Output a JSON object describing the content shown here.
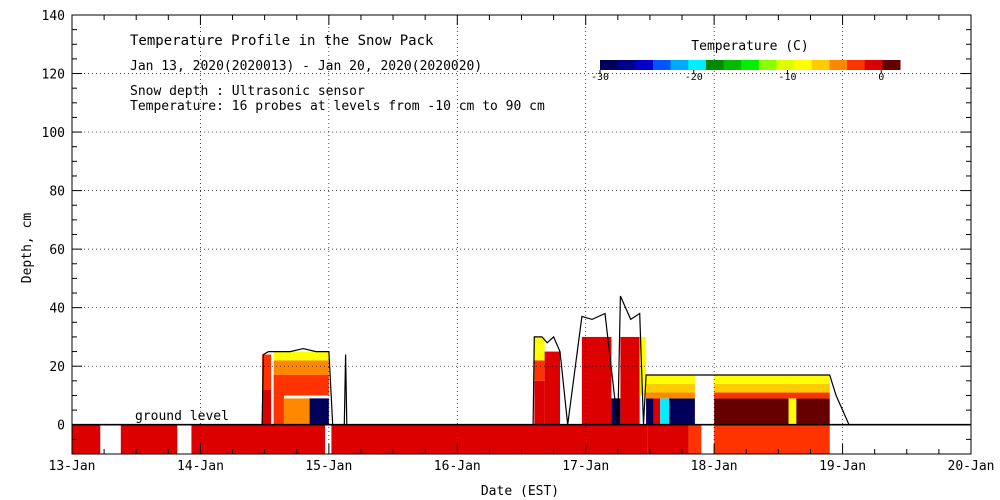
{
  "chart_data": {
    "type": "heatmap",
    "title": "Temperature Profile in the Snow Pack",
    "subtitle": "Jan 13, 2020(2020013) - Jan 20, 2020(2020020)",
    "notes": [
      "Snow depth : Ultrasonic sensor",
      "Temperature: 16 probes at levels from -10 cm to 90 cm"
    ],
    "xlabel": "Date (EST)",
    "ylabel": "Depth, cm",
    "x_ticks": [
      "13-Jan",
      "14-Jan",
      "15-Jan",
      "16-Jan",
      "17-Jan",
      "18-Jan",
      "19-Jan",
      "20-Jan"
    ],
    "xlim_days": [
      13,
      20
    ],
    "ylim": [
      -10,
      140
    ],
    "y_ticks": [
      0,
      20,
      40,
      60,
      80,
      100,
      120,
      140
    ],
    "grid": true,
    "ground_level_label": "ground level",
    "colorbar": {
      "title": "Temperature (C)",
      "ticks": [
        "-30",
        "-20",
        "-10",
        "0"
      ],
      "range": [
        -30,
        2
      ],
      "colors": [
        "#00005a",
        "#000088",
        "#0000cc",
        "#0055ff",
        "#00aaff",
        "#00eeff",
        "#008800",
        "#00bb00",
        "#00ee00",
        "#88ff00",
        "#ddff00",
        "#ffff00",
        "#ffcc00",
        "#ff8800",
        "#ff3300",
        "#dd0000",
        "#660000"
      ]
    },
    "snow_depth_series": [
      {
        "day": 14.48,
        "depth": 0
      },
      {
        "day": 14.49,
        "depth": 24
      },
      {
        "day": 14.53,
        "depth": 25
      },
      {
        "day": 14.6,
        "depth": 25
      },
      {
        "day": 14.7,
        "depth": 25
      },
      {
        "day": 14.8,
        "depth": 26
      },
      {
        "day": 14.9,
        "depth": 25
      },
      {
        "day": 15.0,
        "depth": 25
      },
      {
        "day": 15.03,
        "depth": 0
      },
      {
        "day": 15.12,
        "depth": 0
      },
      {
        "day": 15.13,
        "depth": 24
      },
      {
        "day": 15.14,
        "depth": 0
      },
      {
        "day": 16.59,
        "depth": 0
      },
      {
        "day": 16.6,
        "depth": 30
      },
      {
        "day": 16.66,
        "depth": 30
      },
      {
        "day": 16.7,
        "depth": 28
      },
      {
        "day": 16.75,
        "depth": 30
      },
      {
        "day": 16.8,
        "depth": 25
      },
      {
        "day": 16.86,
        "depth": 0
      },
      {
        "day": 16.97,
        "depth": 37
      },
      {
        "day": 17.05,
        "depth": 36
      },
      {
        "day": 17.15,
        "depth": 38
      },
      {
        "day": 17.25,
        "depth": 0
      },
      {
        "day": 17.27,
        "depth": 44
      },
      {
        "day": 17.35,
        "depth": 36
      },
      {
        "day": 17.42,
        "depth": 38
      },
      {
        "day": 17.45,
        "depth": 0
      },
      {
        "day": 17.47,
        "depth": 17
      },
      {
        "day": 17.6,
        "depth": 17
      },
      {
        "day": 17.8,
        "depth": 17
      },
      {
        "day": 18.0,
        "depth": 17
      },
      {
        "day": 18.2,
        "depth": 17
      },
      {
        "day": 18.5,
        "depth": 17
      },
      {
        "day": 18.75,
        "depth": 17
      },
      {
        "day": 18.9,
        "depth": 17
      },
      {
        "day": 18.95,
        "depth": 10
      },
      {
        "day": 19.0,
        "depth": 5
      },
      {
        "day": 19.05,
        "depth": 0
      },
      {
        "day": 19.2,
        "depth": 0
      }
    ],
    "cells": [
      {
        "d0": 13.0,
        "d1": 13.22,
        "z0": -10,
        "z1": 0,
        "t": 0
      },
      {
        "d0": 13.38,
        "d1": 13.82,
        "z0": -10,
        "z1": 0,
        "t": 0
      },
      {
        "d0": 13.93,
        "d1": 14.97,
        "z0": -10,
        "z1": 0,
        "t": 0
      },
      {
        "d0": 15.02,
        "d1": 17.48,
        "z0": -10,
        "z1": 0,
        "t": 0
      },
      {
        "d0": 17.48,
        "d1": 17.8,
        "z0": -10,
        "z1": 0,
        "t": -1
      },
      {
        "d0": 17.8,
        "d1": 17.9,
        "z0": -10,
        "z1": 0,
        "t": -3
      },
      {
        "d0": 18.0,
        "d1": 18.9,
        "z0": -10,
        "z1": 0,
        "t": -3
      },
      {
        "d0": 14.48,
        "d1": 14.55,
        "z0": 0,
        "z1": 12,
        "t": 0
      },
      {
        "d0": 14.48,
        "d1": 14.55,
        "z0": 12,
        "z1": 24,
        "t": -2
      },
      {
        "d0": 14.57,
        "d1": 14.65,
        "z0": 0,
        "z1": 10,
        "t": -2
      },
      {
        "d0": 14.65,
        "d1": 14.85,
        "z0": 0,
        "z1": 9,
        "t": -5
      },
      {
        "d0": 14.85,
        "d1": 15.0,
        "z0": 0,
        "z1": 9,
        "t": -30
      },
      {
        "d0": 14.57,
        "d1": 15.0,
        "z0": 10,
        "z1": 17,
        "t": -3
      },
      {
        "d0": 14.57,
        "d1": 15.0,
        "z0": 17,
        "z1": 22,
        "t": -5
      },
      {
        "d0": 14.57,
        "d1": 15.0,
        "z0": 22,
        "z1": 25,
        "t": -9
      },
      {
        "d0": 16.6,
        "d1": 16.68,
        "z0": 0,
        "z1": 15,
        "t": 0
      },
      {
        "d0": 16.6,
        "d1": 16.68,
        "z0": 15,
        "z1": 22,
        "t": -2
      },
      {
        "d0": 16.6,
        "d1": 16.68,
        "z0": 22,
        "z1": 30,
        "t": -9
      },
      {
        "d0": 16.68,
        "d1": 16.8,
        "z0": 0,
        "z1": 25,
        "t": 0
      },
      {
        "d0": 16.97,
        "d1": 17.2,
        "z0": 0,
        "z1": 30,
        "t": 0
      },
      {
        "d0": 17.2,
        "d1": 17.27,
        "z0": 0,
        "z1": 9,
        "t": -30
      },
      {
        "d0": 17.27,
        "d1": 17.42,
        "z0": 0,
        "z1": 30,
        "t": 0
      },
      {
        "d0": 17.42,
        "d1": 17.47,
        "z0": 10,
        "z1": 30,
        "t": -8
      },
      {
        "d0": 17.47,
        "d1": 17.53,
        "z0": 0,
        "z1": 9,
        "t": -30
      },
      {
        "d0": 17.53,
        "d1": 17.58,
        "z0": 0,
        "z1": 9,
        "t": 0
      },
      {
        "d0": 17.58,
        "d1": 17.65,
        "z0": 0,
        "z1": 9,
        "t": -20
      },
      {
        "d0": 17.65,
        "d1": 17.85,
        "z0": 0,
        "z1": 9,
        "t": -30
      },
      {
        "d0": 17.47,
        "d1": 17.85,
        "z0": 9,
        "z1": 11,
        "t": -4
      },
      {
        "d0": 17.47,
        "d1": 17.85,
        "z0": 11,
        "z1": 14,
        "t": -6
      },
      {
        "d0": 17.47,
        "d1": 17.85,
        "z0": 14,
        "z1": 17,
        "t": -8
      },
      {
        "d0": 18.0,
        "d1": 18.58,
        "z0": 0,
        "z1": 9,
        "t": 1
      },
      {
        "d0": 18.58,
        "d1": 18.64,
        "z0": 0,
        "z1": 9,
        "t": -8
      },
      {
        "d0": 18.64,
        "d1": 18.9,
        "z0": 0,
        "z1": 9,
        "t": 1
      },
      {
        "d0": 18.0,
        "d1": 18.9,
        "z0": 9,
        "z1": 11,
        "t": -3
      },
      {
        "d0": 18.0,
        "d1": 18.9,
        "z0": 11,
        "z1": 14,
        "t": -7
      },
      {
        "d0": 18.0,
        "d1": 18.9,
        "z0": 14,
        "z1": 17,
        "t": -8
      }
    ]
  }
}
